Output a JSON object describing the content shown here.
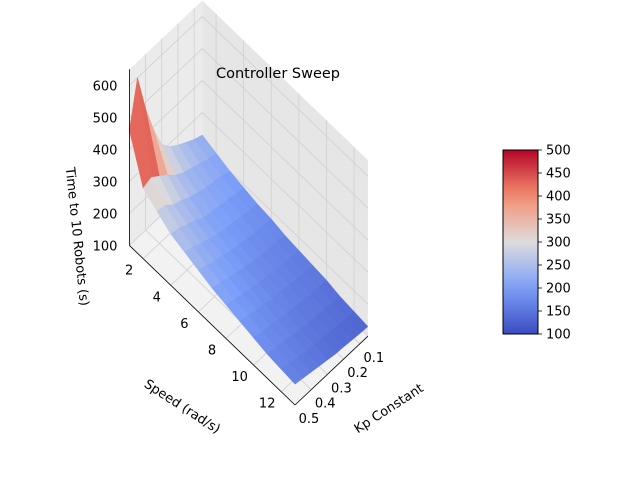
{
  "chart_data": {
    "type": "surface3d",
    "title": "Controller Sweep",
    "xlabel": "Kp Constant",
    "ylabel": "Speed (rad/s)",
    "zlabel": "Time to 10 Robots (s)",
    "x_ticks": [
      "0.1",
      "0.2",
      "0.3",
      "0.4",
      "0.5"
    ],
    "y_ticks": [
      "2",
      "4",
      "6",
      "8",
      "10",
      "12"
    ],
    "z_ticks": [
      "100",
      "200",
      "300",
      "400",
      "500",
      "600"
    ],
    "xlim": [
      0.05,
      0.5
    ],
    "ylim": [
      1,
      13
    ],
    "zlim": [
      100,
      650
    ],
    "colormap": "coolwarm",
    "colorbar": {
      "ticks": [
        "100",
        "150",
        "200",
        "250",
        "300",
        "350",
        "400",
        "450",
        "500"
      ],
      "range": [
        100,
        500
      ],
      "placement": "right"
    },
    "kp_values": [
      0.05,
      0.1,
      0.15,
      0.2,
      0.25,
      0.3,
      0.35,
      0.4,
      0.45,
      0.5
    ],
    "speed_values": [
      1,
      2,
      3,
      4,
      5,
      6,
      7,
      8,
      9,
      10,
      11,
      12,
      13
    ],
    "z_values": [
      [
        230,
        215,
        200,
        190,
        180,
        175,
        165,
        160,
        155,
        150,
        140,
        135,
        130
      ],
      [
        240,
        220,
        210,
        195,
        185,
        178,
        170,
        162,
        158,
        150,
        145,
        138,
        132
      ],
      [
        255,
        230,
        215,
        200,
        190,
        180,
        172,
        165,
        160,
        155,
        148,
        140,
        135
      ],
      [
        270,
        240,
        220,
        205,
        195,
        185,
        175,
        170,
        165,
        158,
        150,
        143,
        138
      ],
      [
        290,
        250,
        228,
        210,
        198,
        190,
        180,
        172,
        168,
        160,
        153,
        147,
        140
      ],
      [
        320,
        265,
        238,
        215,
        205,
        195,
        185,
        178,
        170,
        165,
        158,
        150,
        145
      ],
      [
        390,
        290,
        252,
        230,
        215,
        205,
        195,
        185,
        178,
        170,
        162,
        155,
        150
      ],
      [
        480,
        310,
        262,
        242,
        225,
        210,
        200,
        190,
        182,
        175,
        168,
        160,
        155
      ],
      [
        600,
        330,
        285,
        255,
        238,
        222,
        210,
        198,
        190,
        180,
        172,
        165,
        160
      ],
      [
        460,
        320,
        290,
        260,
        245,
        230,
        215,
        205,
        195,
        185,
        175,
        170,
        165
      ]
    ]
  }
}
